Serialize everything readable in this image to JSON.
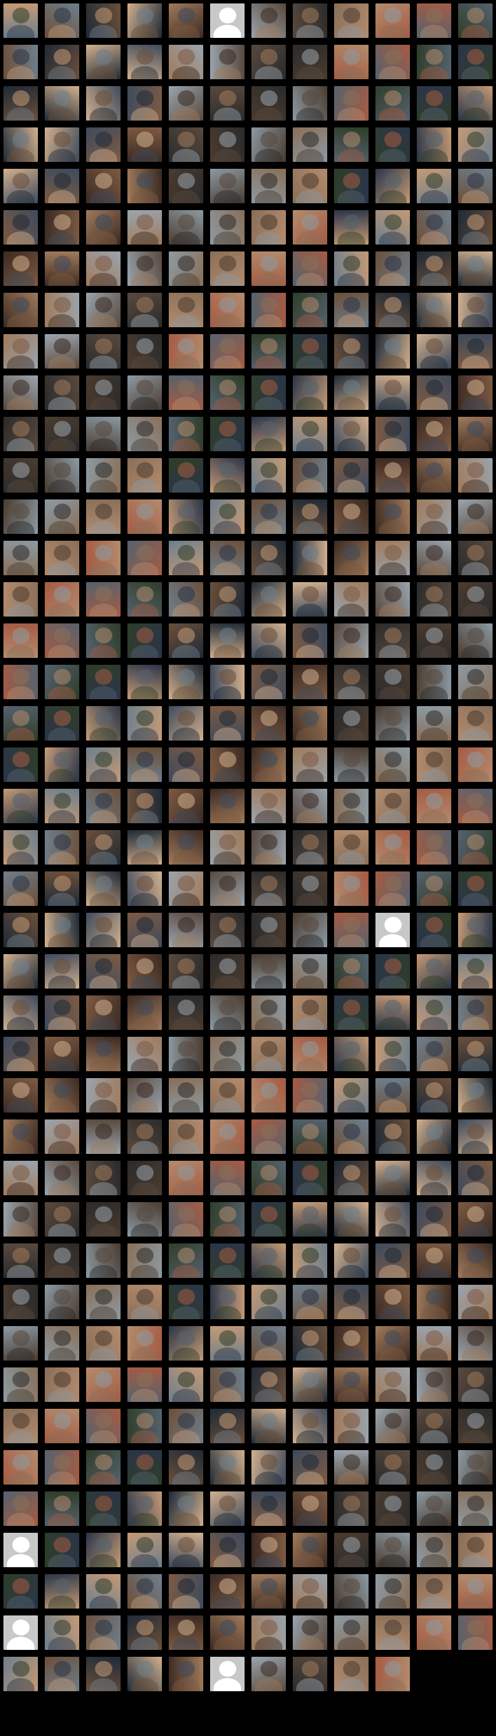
{
  "title": "",
  "grid": {
    "columns": 12,
    "total_tiles": 490,
    "placeholder_tiles": [
      5,
      273,
      444,
      468,
      485
    ]
  },
  "palette": [
    "#6b4f3a",
    "#3e4a5c",
    "#a07a5b",
    "#2b2b2b",
    "#8a6f58",
    "#55626e",
    "#c49a76",
    "#1f2a36",
    "#7d5a43",
    "#9aa4ad",
    "#4a3b2f",
    "#b38b6d",
    "#2f3d2a",
    "#6e7f8c",
    "#d1b08f",
    "#3b2a22",
    "#58493e",
    "#8c9aa3",
    "#a55b43",
    "#2a3548"
  ]
}
